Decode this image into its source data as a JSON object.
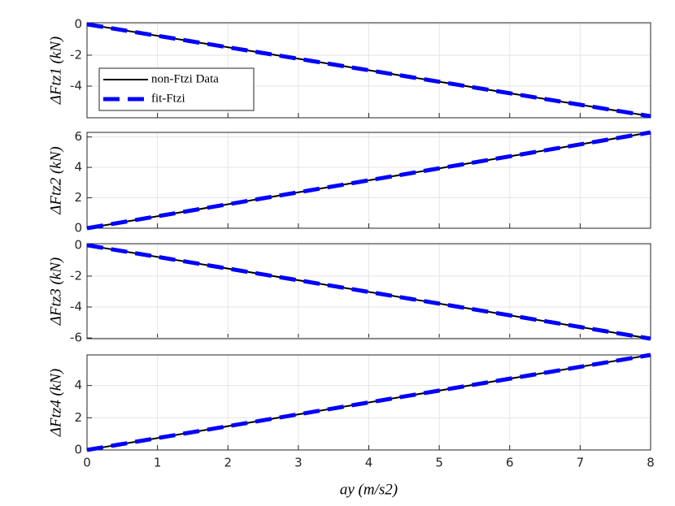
{
  "chart_data": [
    {
      "type": "line",
      "ylabel": "ΔFtz1 (kN)",
      "xlim": [
        0,
        8
      ],
      "xticks": [
        0,
        1,
        2,
        3,
        4,
        5,
        6,
        7,
        8
      ],
      "ylim": [
        -6.05,
        0.1
      ],
      "yticks": [
        -4,
        -2,
        0
      ],
      "grid": true,
      "legend": "upper left",
      "series": [
        {
          "name": "non-Ftzi Data",
          "color": "#000000",
          "dashed": false,
          "x": [
            0,
            8
          ],
          "values": [
            0,
            -5.95
          ]
        },
        {
          "name": "fit-Ftzi",
          "color": "#0000ff",
          "dashed": true,
          "x": [
            0,
            8
          ],
          "values": [
            0,
            -5.95
          ]
        }
      ]
    },
    {
      "type": "line",
      "ylabel": "ΔFtz2 (kN)",
      "xlim": [
        0,
        8
      ],
      "xticks": [
        0,
        1,
        2,
        3,
        4,
        5,
        6,
        7,
        8
      ],
      "ylim": [
        0,
        6.3
      ],
      "yticks": [
        0,
        2,
        4,
        6
      ],
      "grid": true,
      "series": [
        {
          "color": "#000000",
          "dashed": false,
          "x": [
            0,
            8
          ],
          "values": [
            0,
            6.3
          ]
        },
        {
          "color": "#0000ff",
          "dashed": true,
          "x": [
            0,
            8
          ],
          "values": [
            0,
            6.3
          ]
        }
      ]
    },
    {
      "type": "line",
      "ylabel": "ΔFtz3 (kN)",
      "xlim": [
        0,
        8
      ],
      "xticks": [
        0,
        1,
        2,
        3,
        4,
        5,
        6,
        7,
        8
      ],
      "ylim": [
        -6.05,
        0.1
      ],
      "yticks": [
        -6,
        -4,
        -2,
        0
      ],
      "grid": true,
      "series": [
        {
          "color": "#000000",
          "dashed": false,
          "x": [
            0,
            8
          ],
          "values": [
            0,
            -6.05
          ]
        },
        {
          "color": "#0000ff",
          "dashed": true,
          "x": [
            0,
            8
          ],
          "values": [
            0,
            -6.05
          ]
        }
      ]
    },
    {
      "type": "line",
      "ylabel": "ΔFtz4 (kN)",
      "xlabel": "ay (m/s2)",
      "xlim": [
        0,
        8
      ],
      "xticks": [
        0,
        1,
        2,
        3,
        4,
        5,
        6,
        7,
        8
      ],
      "ylim": [
        0,
        5.9
      ],
      "yticks": [
        0,
        2,
        4
      ],
      "grid": true,
      "series": [
        {
          "color": "#000000",
          "dashed": false,
          "x": [
            0,
            8
          ],
          "values": [
            0,
            5.9
          ]
        },
        {
          "color": "#0000ff",
          "dashed": true,
          "x": [
            0,
            8
          ],
          "values": [
            0,
            5.9
          ]
        }
      ]
    }
  ]
}
